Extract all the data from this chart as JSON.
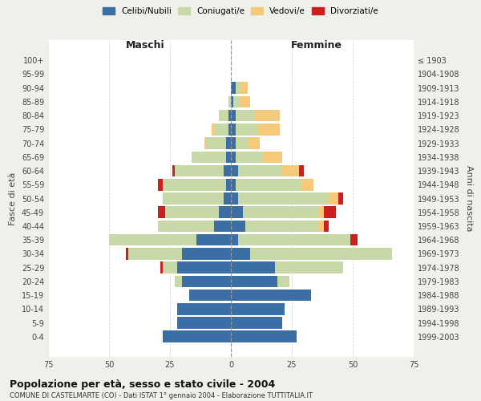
{
  "age_groups": [
    "0-4",
    "5-9",
    "10-14",
    "15-19",
    "20-24",
    "25-29",
    "30-34",
    "35-39",
    "40-44",
    "45-49",
    "50-54",
    "55-59",
    "60-64",
    "65-69",
    "70-74",
    "75-79",
    "80-84",
    "85-89",
    "90-94",
    "95-99",
    "100+"
  ],
  "birth_years": [
    "1999-2003",
    "1994-1998",
    "1989-1993",
    "1984-1988",
    "1979-1983",
    "1974-1978",
    "1969-1973",
    "1964-1968",
    "1959-1963",
    "1954-1958",
    "1949-1953",
    "1944-1948",
    "1939-1943",
    "1934-1938",
    "1929-1933",
    "1924-1928",
    "1919-1923",
    "1914-1918",
    "1909-1913",
    "1904-1908",
    "≤ 1903"
  ],
  "maschi": {
    "celibe": [
      28,
      22,
      22,
      17,
      20,
      22,
      20,
      14,
      7,
      5,
      3,
      2,
      3,
      2,
      2,
      1,
      1,
      0,
      0,
      0,
      0
    ],
    "coniugato": [
      0,
      0,
      0,
      0,
      3,
      6,
      22,
      36,
      23,
      22,
      25,
      26,
      20,
      14,
      8,
      6,
      4,
      1,
      0,
      0,
      0
    ],
    "vedovo": [
      0,
      0,
      0,
      0,
      0,
      0,
      0,
      0,
      0,
      0,
      0,
      0,
      0,
      0,
      1,
      1,
      0,
      0,
      0,
      0,
      0
    ],
    "divorziato": [
      0,
      0,
      0,
      0,
      0,
      1,
      1,
      0,
      0,
      3,
      0,
      2,
      1,
      0,
      0,
      0,
      0,
      0,
      0,
      0,
      0
    ]
  },
  "femmine": {
    "nubile": [
      27,
      21,
      22,
      33,
      19,
      18,
      8,
      3,
      6,
      5,
      3,
      2,
      3,
      2,
      2,
      2,
      2,
      1,
      2,
      0,
      0
    ],
    "coniugata": [
      0,
      0,
      0,
      0,
      5,
      28,
      58,
      46,
      30,
      31,
      37,
      27,
      18,
      11,
      5,
      9,
      8,
      3,
      2,
      0,
      0
    ],
    "vedova": [
      0,
      0,
      0,
      0,
      0,
      0,
      0,
      0,
      2,
      2,
      4,
      5,
      7,
      8,
      5,
      9,
      10,
      4,
      3,
      0,
      0
    ],
    "divorziata": [
      0,
      0,
      0,
      0,
      0,
      0,
      0,
      3,
      2,
      5,
      2,
      0,
      2,
      0,
      0,
      0,
      0,
      0,
      0,
      0,
      0
    ]
  },
  "colors": {
    "celibe": "#3a6ea5",
    "coniugato": "#c8d9a8",
    "vedovo": "#f5c97a",
    "divorziato": "#cc2020"
  },
  "legend_labels": [
    "Celibi/Nubili",
    "Coniugati/e",
    "Vedovi/e",
    "Divorziati/e"
  ],
  "xlabel_left": "Maschi",
  "xlabel_right": "Femmine",
  "ylabel_left": "Fasce di età",
  "ylabel_right": "Anni di nascita",
  "xlim": 75,
  "title": "Popolazione per età, sesso e stato civile - 2004",
  "subtitle": "COMUNE DI CASTELMARTE (CO) - Dati ISTAT 1° gennaio 2004 - Elaborazione TUTTITALIA.IT",
  "bg_color": "#f0f0eb",
  "plot_bg": "#ffffff",
  "grid_color": "#cccccc"
}
